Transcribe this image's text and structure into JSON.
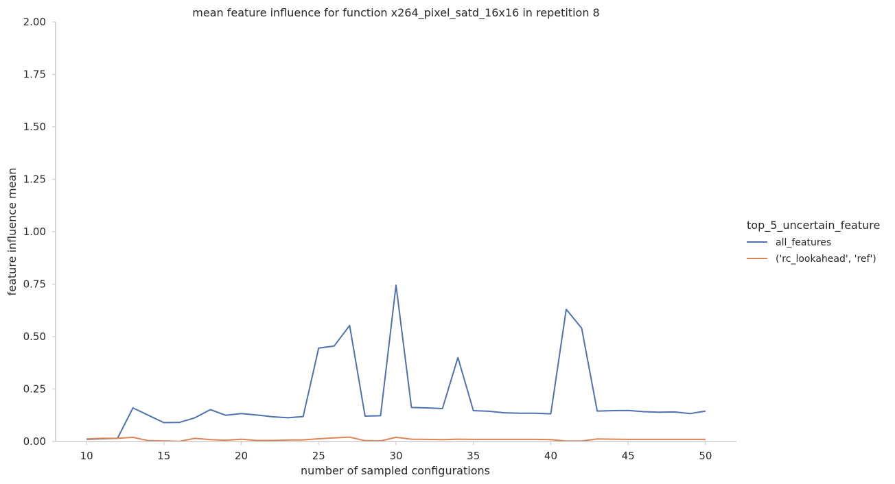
{
  "chart_data": {
    "type": "line",
    "title": "mean feature influence for function x264_pixel_satd_16x16 in repetition 8",
    "xlabel": "number of sampled configurations",
    "ylabel": "feature influence mean",
    "xlim": [
      8,
      52
    ],
    "ylim": [
      0,
      2
    ],
    "x_ticks": [
      "10",
      "15",
      "20",
      "25",
      "30",
      "35",
      "40",
      "45",
      "50"
    ],
    "y_ticks": [
      "0.00",
      "0.25",
      "0.50",
      "0.75",
      "1.00",
      "1.25",
      "1.50",
      "1.75",
      "2.00"
    ],
    "grid": false,
    "legend": {
      "title": "top_5_uncertain_feature",
      "placement": "right"
    },
    "x": [
      10,
      11,
      12,
      13,
      14,
      15,
      16,
      17,
      18,
      19,
      20,
      21,
      22,
      23,
      24,
      25,
      26,
      27,
      28,
      29,
      30,
      31,
      32,
      33,
      34,
      35,
      36,
      37,
      38,
      39,
      40,
      41,
      42,
      43,
      44,
      45,
      46,
      47,
      48,
      49,
      50
    ],
    "series": [
      {
        "name": "all_features",
        "color": "#4c72b0",
        "values": [
          0.01,
          0.013,
          0.015,
          0.16,
          0.125,
          0.09,
          0.091,
          0.113,
          0.152,
          0.125,
          0.133,
          0.126,
          0.118,
          0.113,
          0.119,
          0.445,
          0.455,
          0.553,
          0.121,
          0.123,
          0.745,
          0.162,
          0.16,
          0.157,
          0.4,
          0.147,
          0.144,
          0.137,
          0.135,
          0.135,
          0.132,
          0.63,
          0.54,
          0.145,
          0.147,
          0.148,
          0.142,
          0.14,
          0.141,
          0.133,
          0.145
        ]
      },
      {
        "name": "('rc_lookahead', 'ref')",
        "color": "#dd8452",
        "values": [
          0.012,
          0.015,
          0.015,
          0.02,
          0.004,
          0.003,
          0.001,
          0.015,
          0.009,
          0.006,
          0.011,
          0.005,
          0.005,
          0.007,
          0.008,
          0.013,
          0.017,
          0.021,
          0.004,
          0.003,
          0.02,
          0.011,
          0.01,
          0.009,
          0.011,
          0.01,
          0.01,
          0.01,
          0.01,
          0.01,
          0.009,
          0.002,
          0.002,
          0.012,
          0.011,
          0.01,
          0.01,
          0.01,
          0.01,
          0.01,
          0.01
        ]
      }
    ]
  }
}
